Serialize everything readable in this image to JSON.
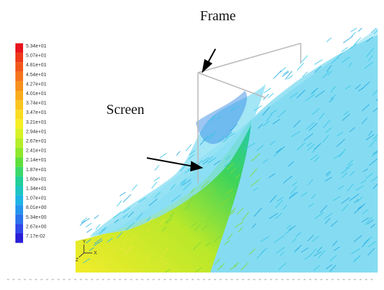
{
  "labels": {
    "frame": "Frame",
    "screen": "Screen"
  },
  "legend": {
    "values": [
      "5.34e+01",
      "5.07e+01",
      "4.81e+01",
      "4.54e+01",
      "4.27e+01",
      "4.01e+01",
      "3.74e+01",
      "3.47e+01",
      "3.21e+01",
      "2.94e+01",
      "2.67e+01",
      "2.41e+01",
      "2.14e+01",
      "1.87e+01",
      "1.60e+01",
      "1.34e+01",
      "1.07e+01",
      "8.01e+00",
      "5.34e+00",
      "2.67e+00",
      "7.17e-02"
    ],
    "colors": [
      "#e8141c",
      "#ee3a1a",
      "#f2571a",
      "#f5741c",
      "#f7911d",
      "#f9ad1e",
      "#fbc520",
      "#fbdc22",
      "#f6ef24",
      "#d8f226",
      "#b5ee2a",
      "#8ee82c",
      "#5fe03a",
      "#3bd86a",
      "#22cf98",
      "#1ec6c2",
      "#1fb4e6",
      "#2595ee",
      "#2c72ee",
      "#3048e8",
      "#2a1fd6"
    ]
  },
  "axes": {
    "x": "X",
    "y": "Y",
    "z": "Z"
  }
}
